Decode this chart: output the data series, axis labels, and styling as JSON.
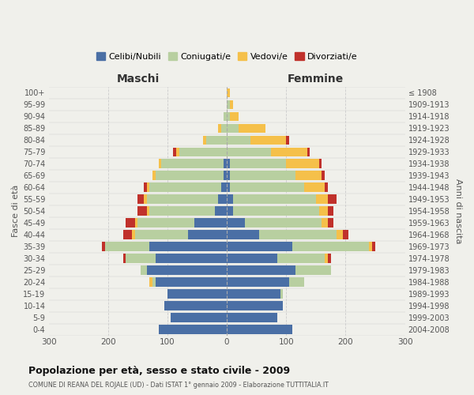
{
  "age_groups": [
    "0-4",
    "5-9",
    "10-14",
    "15-19",
    "20-24",
    "25-29",
    "30-34",
    "35-39",
    "40-44",
    "45-49",
    "50-54",
    "55-59",
    "60-64",
    "65-69",
    "70-74",
    "75-79",
    "80-84",
    "85-89",
    "90-94",
    "95-99",
    "100+"
  ],
  "birth_years": [
    "2004-2008",
    "1999-2003",
    "1994-1998",
    "1989-1993",
    "1984-1988",
    "1979-1983",
    "1974-1978",
    "1969-1973",
    "1964-1968",
    "1959-1963",
    "1954-1958",
    "1949-1953",
    "1944-1948",
    "1939-1943",
    "1934-1938",
    "1929-1933",
    "1924-1928",
    "1919-1923",
    "1914-1918",
    "1909-1913",
    "≤ 1908"
  ],
  "males": {
    "celibe": [
      115,
      95,
      105,
      100,
      120,
      135,
      120,
      130,
      65,
      55,
      20,
      15,
      10,
      5,
      5,
      0,
      0,
      0,
      0,
      0,
      0
    ],
    "coniugato": [
      0,
      0,
      0,
      0,
      5,
      10,
      50,
      75,
      90,
      95,
      110,
      120,
      120,
      115,
      105,
      80,
      35,
      10,
      5,
      0,
      0
    ],
    "vedovo": [
      0,
      0,
      0,
      0,
      5,
      0,
      0,
      0,
      5,
      5,
      5,
      5,
      5,
      5,
      5,
      5,
      5,
      5,
      0,
      0,
      0
    ],
    "divorziato": [
      0,
      0,
      0,
      0,
      0,
      0,
      5,
      5,
      15,
      15,
      15,
      10,
      5,
      0,
      0,
      5,
      0,
      0,
      0,
      0,
      0
    ]
  },
  "females": {
    "nubile": [
      110,
      85,
      95,
      90,
      105,
      115,
      85,
      110,
      55,
      30,
      10,
      10,
      5,
      5,
      5,
      0,
      0,
      0,
      0,
      0,
      0
    ],
    "coniugata": [
      0,
      0,
      0,
      5,
      25,
      60,
      80,
      130,
      130,
      130,
      145,
      140,
      125,
      110,
      95,
      75,
      40,
      20,
      5,
      5,
      0
    ],
    "vedova": [
      0,
      0,
      0,
      0,
      0,
      0,
      5,
      5,
      10,
      10,
      15,
      20,
      35,
      45,
      55,
      60,
      60,
      45,
      15,
      5,
      5
    ],
    "divorziata": [
      0,
      0,
      0,
      0,
      0,
      0,
      5,
      5,
      10,
      10,
      10,
      15,
      5,
      5,
      5,
      5,
      5,
      0,
      0,
      0,
      0
    ]
  },
  "colors": {
    "celibe": "#4a6fa5",
    "coniugato": "#b8cfa0",
    "vedovo": "#f5c04a",
    "divorziato": "#c0312b"
  },
  "title": "Popolazione per età, sesso e stato civile - 2009",
  "subtitle": "COMUNE DI REANA DEL ROJALE (UD) - Dati ISTAT 1° gennaio 2009 - Elaborazione TUTTITALIA.IT",
  "xlabel_left": "Maschi",
  "xlabel_right": "Femmine",
  "ylabel_left": "Fasce di età",
  "ylabel_right": "Anni di nascita",
  "xlim": 300,
  "background_color": "#f0f0eb",
  "legend_labels": [
    "Celibi/Nubili",
    "Coniugati/e",
    "Vedovi/e",
    "Divorziati/e"
  ]
}
